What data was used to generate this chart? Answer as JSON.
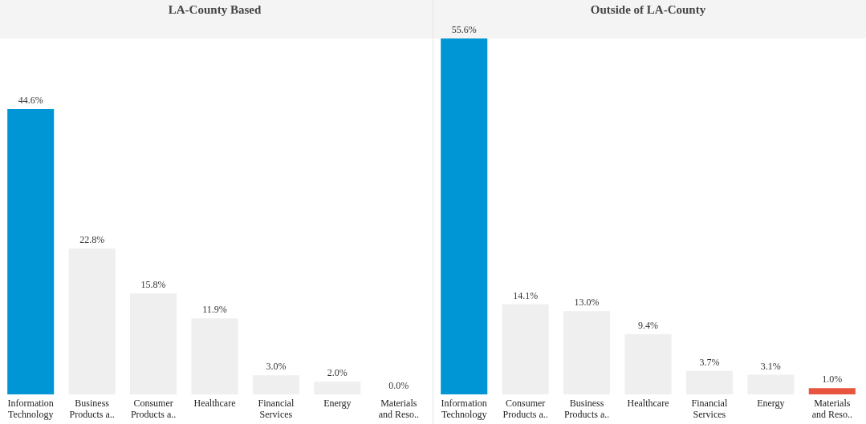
{
  "chart_data": [
    {
      "type": "bar",
      "title": "LA-County Based",
      "categories": [
        "Information Technology",
        "Business Products a..",
        "Consumer Products a..",
        "Healthcare",
        "Financial Services",
        "Energy",
        "Materials and Reso.."
      ],
      "values": [
        44.6,
        22.8,
        15.8,
        11.9,
        3.0,
        2.0,
        0.0
      ],
      "colors": [
        "#0096d6",
        "#efefef",
        "#efefef",
        "#efefef",
        "#efefef",
        "#efefef",
        "#efefef"
      ],
      "value_labels": [
        "44.6%",
        "22.8%",
        "15.8%",
        "11.9%",
        "3.0%",
        "2.0%",
        "0.0%"
      ],
      "grid": false,
      "legend": false
    },
    {
      "type": "bar",
      "title": "Outside of LA-County",
      "categories": [
        "Information Technology",
        "Consumer Products a..",
        "Business Products a..",
        "Healthcare",
        "Financial Services",
        "Energy",
        "Materials and Reso.."
      ],
      "values": [
        55.6,
        14.1,
        13.0,
        9.4,
        3.7,
        3.1,
        1.0
      ],
      "colors": [
        "#0096d6",
        "#efefef",
        "#efefef",
        "#efefef",
        "#efefef",
        "#efefef",
        "#e8553e"
      ],
      "value_labels": [
        "55.6%",
        "14.1%",
        "13.0%",
        "9.4%",
        "3.7%",
        "3.1%",
        "1.0%"
      ],
      "grid": false,
      "legend": false
    }
  ]
}
